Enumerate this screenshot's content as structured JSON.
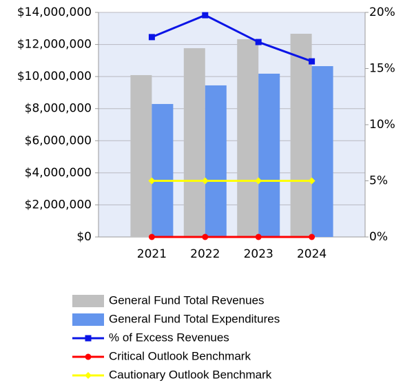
{
  "chart_data": {
    "type": "bar",
    "categories": [
      "2021",
      "2022",
      "2023",
      "2024"
    ],
    "series": [
      {
        "name": "General Fund Total Revenues",
        "type": "bar",
        "color": "#c0c0c0",
        "values": [
          10090000,
          11770000,
          12330000,
          12670000
        ]
      },
      {
        "name": "General Fund Total Expenditures",
        "type": "bar",
        "color": "#6495ed",
        "values": [
          8290000,
          9450000,
          10180000,
          10650000
        ]
      },
      {
        "name": "% of Excess Revenues",
        "type": "line",
        "axis": "y2",
        "marker": "square",
        "color": "#0a14e6",
        "values": [
          17.8,
          19.75,
          17.36,
          15.64
        ]
      },
      {
        "name": "Critical Outlook Benchmark",
        "type": "line",
        "axis": "y2",
        "marker": "circle",
        "color": "#ff0000",
        "values": [
          0,
          0,
          0,
          0
        ]
      },
      {
        "name": "Cautionary Outlook Benchmark",
        "type": "line",
        "axis": "y2",
        "marker": "diamond",
        "color": "#ffff00",
        "values": [
          5,
          5,
          5,
          5
        ]
      }
    ],
    "ylim": [
      0,
      14000000
    ],
    "yticks": [
      {
        "value": 0,
        "label": "$0"
      },
      {
        "value": 2000000,
        "label": "$2,000,000"
      },
      {
        "value": 4000000,
        "label": "$4,000,000"
      },
      {
        "value": 6000000,
        "label": "$6,000,000"
      },
      {
        "value": 8000000,
        "label": "$8,000,000"
      },
      {
        "value": 10000000,
        "label": "$10,000,000"
      },
      {
        "value": 12000000,
        "label": "$12,000,000"
      },
      {
        "value": 14000000,
        "label": "$14,000,000"
      }
    ],
    "y2lim": [
      0,
      20
    ],
    "y2ticks": [
      {
        "value": 0,
        "label": "0%"
      },
      {
        "value": 5,
        "label": "5%"
      },
      {
        "value": 10,
        "label": "10%"
      },
      {
        "value": 15,
        "label": "15%"
      },
      {
        "value": 20,
        "label": "20%"
      }
    ],
    "grid": true,
    "legend": "bottom"
  }
}
